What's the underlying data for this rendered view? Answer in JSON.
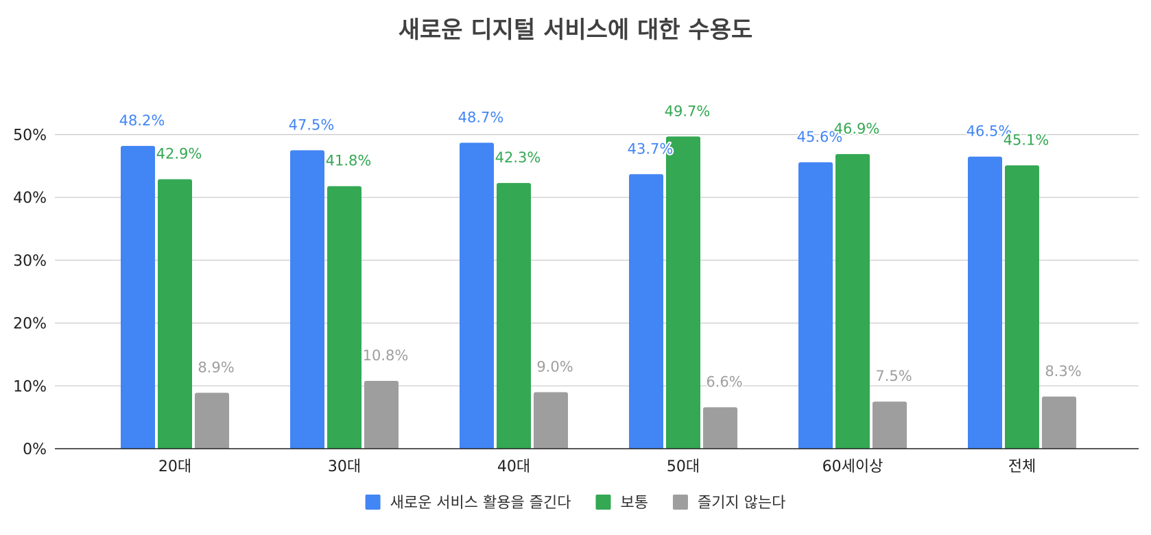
{
  "chart_data": {
    "type": "bar",
    "title": "새로운 디지털 서비스에 대한 수용도",
    "xlabel": "",
    "ylabel": "",
    "categories": [
      "20대",
      "30대",
      "40대",
      "50대",
      "60세이상",
      "전체"
    ],
    "series": [
      {
        "name": "새로운 서비스 활용을 즐긴다",
        "color": "#4285f4",
        "values": [
          48.2,
          47.5,
          48.7,
          43.7,
          45.6,
          46.5
        ],
        "labels": [
          "48.2%",
          "47.5%",
          "48.7%",
          "43.7%",
          "45.6%",
          "46.5%"
        ]
      },
      {
        "name": "보통",
        "color": "#34a853",
        "values": [
          42.9,
          41.8,
          42.3,
          49.7,
          46.9,
          45.1
        ],
        "labels": [
          "42.9%",
          "41.8%",
          "42.3%",
          "49.7%",
          "46.9%",
          "45.1%"
        ]
      },
      {
        "name": "즐기지 않는다",
        "color": "#9e9e9e",
        "values": [
          8.9,
          10.8,
          9.0,
          6.6,
          7.5,
          8.3
        ],
        "labels": [
          "8.9%",
          "10.8%",
          "9.0%",
          "6.6%",
          "7.5%",
          "8.3%"
        ]
      }
    ],
    "y_ticks": [
      "0%",
      "10%",
      "20%",
      "30%",
      "40%",
      "50%"
    ],
    "ylim": [
      0,
      50
    ],
    "grid": true,
    "legend_position": "bottom"
  }
}
